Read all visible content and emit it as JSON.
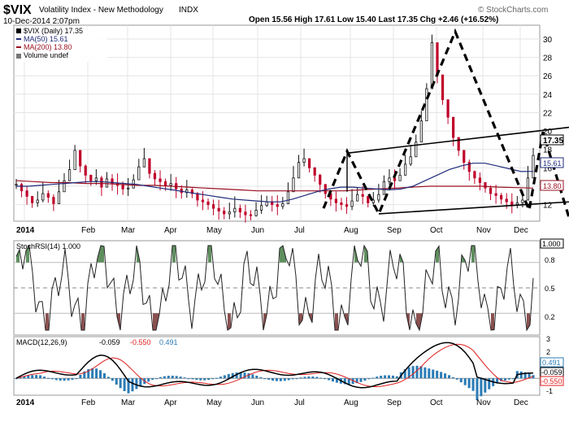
{
  "header": {
    "symbol": "$VIX",
    "name": "Volatility Index - New Methodology",
    "exchange": "INDX",
    "datetime": "10-Dec-2014 2:07pm",
    "stats": "Open 15.56  High 17.61  Low 15.40  Last 17.35  Chg +2.46 (+16.52%)",
    "watermark": "© StockCharts.com"
  },
  "legend": {
    "price": "$VIX (Daily) 17.35",
    "ma50": "MA(50) 15.61",
    "ma200": "MA(200) 13.80",
    "volume": "Volume undef"
  },
  "colors": {
    "up": "#111111",
    "down": "#c0002a",
    "ma50": "#1f2b7a",
    "ma200": "#9a1020",
    "stoch_fill_up": "#5f8f5f",
    "stoch_fill_down": "#8a5050",
    "macd_hist": "#2b7bb5",
    "signal": "#e02020"
  },
  "chart_data": [
    {
      "type": "line",
      "panel": "price",
      "title": "$VIX (Daily) 17.35",
      "x_tick_labels": [
        "2014",
        "Feb",
        "Mar",
        "Apr",
        "May",
        "Jun",
        "Jul",
        "Aug",
        "Sep",
        "Oct",
        "Nov",
        "Dec"
      ],
      "y_ticks": [
        12,
        14,
        16,
        18,
        20,
        22,
        24,
        26,
        28,
        30
      ],
      "ylim": [
        10.2,
        31.5
      ],
      "series": [
        {
          "name": "$VIX (Daily)",
          "values": [
            14.2,
            13.5,
            12.9,
            12.2,
            12.5,
            13.2,
            12.8,
            12.1,
            13.4,
            14.6,
            15.8,
            17.9,
            16.2,
            15.2,
            14.6,
            14.9,
            13.9,
            14.8,
            14.3,
            14.1,
            13.7,
            13.8,
            14.7,
            16.1,
            17.0,
            15.4,
            14.8,
            14.5,
            14.1,
            14.3,
            13.7,
            13.3,
            13.6,
            13.2,
            12.5,
            12.3,
            12.0,
            11.6,
            11.3,
            11.0,
            11.2,
            11.6,
            11.2,
            10.9,
            10.8,
            11.4,
            11.9,
            12.3,
            12.0,
            11.8,
            12.1,
            13.4,
            14.9,
            16.6,
            17.0,
            16.0,
            15.2,
            14.2,
            13.2,
            12.6,
            12.2,
            12.0,
            11.8,
            12.4,
            13.1,
            12.9,
            12.2,
            12.5,
            13.1,
            14.5,
            14.9,
            14.6,
            15.2,
            16.4,
            17.2,
            18.8,
            21.1,
            24.6,
            29.6,
            26.1,
            23.4,
            21.5,
            19.3,
            17.9,
            16.6,
            15.6,
            14.9,
            14.4,
            13.8,
            13.2,
            13.0,
            12.6,
            12.3,
            12.0,
            12.2,
            12.5,
            14.9,
            17.35
          ]
        },
        {
          "name": "MA(50)",
          "values": [
            14.0,
            14.0,
            14.1,
            14.2,
            14.3,
            14.4,
            14.5,
            14.5,
            14.4,
            14.3,
            14.2,
            14.0,
            13.8,
            13.6,
            13.4,
            13.2,
            13.0,
            12.8,
            12.6,
            12.5,
            12.4,
            12.3,
            12.3,
            12.6,
            13.0,
            13.4,
            13.7,
            13.9,
            13.9,
            13.8,
            13.7,
            13.6,
            13.7,
            14.0,
            14.6,
            15.2,
            15.8,
            16.2,
            16.5,
            16.5,
            16.2,
            15.9,
            15.6,
            15.61
          ]
        },
        {
          "name": "MA(200)",
          "values": [
            14.6,
            14.5,
            14.4,
            14.4,
            14.3,
            14.3,
            14.2,
            14.1,
            14.1,
            14.0,
            13.9,
            13.8,
            13.7,
            13.6,
            13.5,
            13.5,
            13.5,
            13.5,
            13.5,
            13.5,
            13.6,
            13.7,
            13.8,
            13.9,
            14.0,
            14.0,
            14.0,
            14.0,
            13.9,
            13.85,
            13.8
          ]
        }
      ],
      "annotations": [
        "Rising wedge lines drawn over price",
        "Dashed zig-zag pattern lines Jul–Dec"
      ],
      "price_labels": [
        "17.35",
        "15.61",
        "13.80"
      ]
    },
    {
      "type": "line",
      "panel": "stochrsi",
      "title": "StochRSI(14) 1.000",
      "y_ticks": [
        0.2,
        0.5,
        0.8
      ],
      "right_labels": [
        "1.000",
        "0.8",
        "0.5",
        "0.2"
      ],
      "ylim": [
        0,
        1
      ]
    },
    {
      "type": "bar",
      "panel": "macd",
      "title": "MACD(12,26,9)",
      "values_text": {
        "macd": "-0.059",
        "signal": "-0.550",
        "hist": "0.491"
      },
      "y_ticks": [
        -1,
        0,
        1,
        2,
        3
      ],
      "ylim": [
        -1.3,
        3.2
      ],
      "right_labels": [
        "0.491",
        "-0.059",
        "-0.550"
      ]
    }
  ]
}
